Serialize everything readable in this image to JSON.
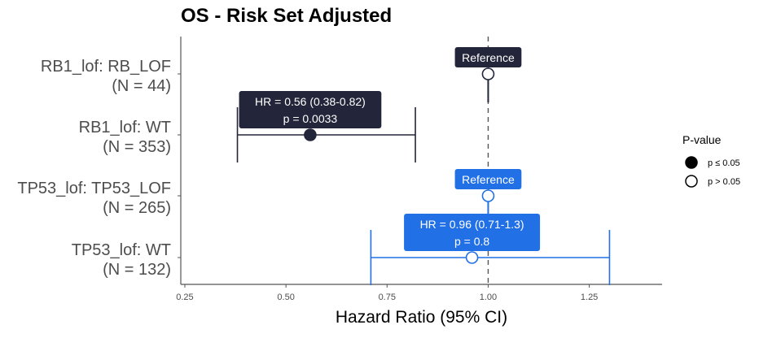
{
  "chart_data": {
    "type": "forest",
    "title": "OS - Risk Set Adjusted",
    "xlabel": "Hazard Ratio (95% CI)",
    "xlim": [
      0.24,
      1.43
    ],
    "xticks": [
      "0.25",
      "0.50",
      "0.75",
      "1.00",
      "1.25"
    ],
    "xtick_values": [
      0.25,
      0.5,
      0.75,
      1.0,
      1.25
    ],
    "reference_line": 1.0,
    "rows": [
      {
        "label_line1": "RB1_lof: RB_LOF",
        "label_line2": "(N = 44)",
        "hr": 1.0,
        "ci": null,
        "reference": true,
        "significant": false,
        "color": "#23253a",
        "box_lines": [
          "Reference"
        ]
      },
      {
        "label_line1": "RB1_lof: WT",
        "label_line2": "(N = 353)",
        "hr": 0.56,
        "ci": [
          0.38,
          0.82
        ],
        "reference": false,
        "significant": true,
        "color": "#23253a",
        "box_lines": [
          "HR = 0.56 (0.38-0.82)",
          "p = 0.0033"
        ]
      },
      {
        "label_line1": "TP53_lof: TP53_LOF",
        "label_line2": "(N = 265)",
        "hr": 1.0,
        "ci": null,
        "reference": true,
        "significant": false,
        "color": "#2270e6",
        "box_lines": [
          "Reference"
        ]
      },
      {
        "label_line1": "TP53_lof: WT",
        "label_line2": "(N = 132)",
        "hr": 0.96,
        "ci": [
          0.71,
          1.3
        ],
        "reference": false,
        "significant": false,
        "color": "#2270e6",
        "box_lines": [
          "HR = 0.96 (0.71-1.3)",
          "p = 0.8"
        ]
      }
    ],
    "legend": {
      "title": "P-value",
      "placement": "right",
      "items": [
        {
          "label": "p ≤ 0.05",
          "filled": true
        },
        {
          "label": "p > 0.05",
          "filled": false
        }
      ]
    }
  }
}
